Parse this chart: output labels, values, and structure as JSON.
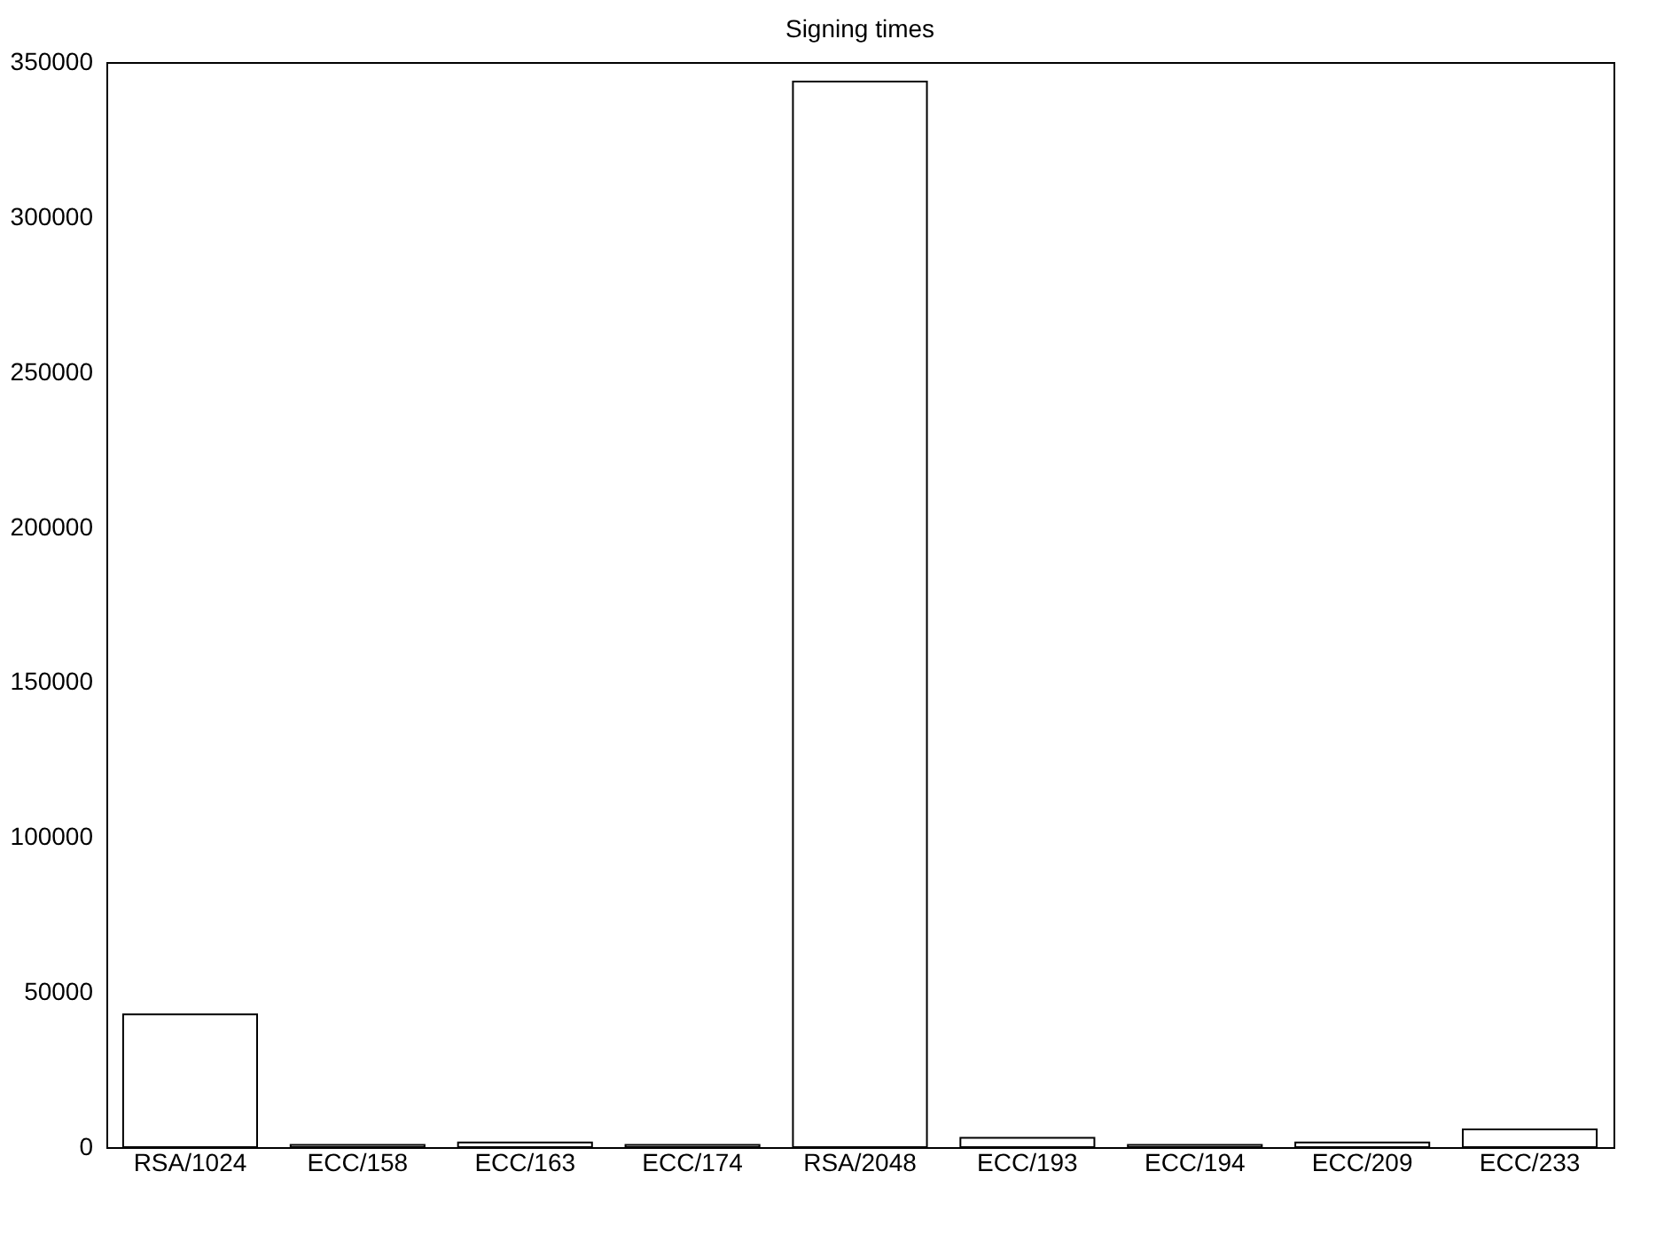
{
  "chart_data": {
    "type": "bar",
    "title": "Signing times",
    "categories": [
      "RSA/1024",
      "ECC/158",
      "ECC/163",
      "ECC/174",
      "RSA/2048",
      "ECC/193",
      "ECC/194",
      "ECC/209",
      "ECC/233"
    ],
    "values": [
      42800,
      700,
      1500,
      700,
      343700,
      3000,
      700,
      1500,
      5700
    ],
    "color": "#ffffff",
    "ylim": [
      0,
      350000
    ],
    "yticks": [
      0,
      50000,
      100000,
      150000,
      200000,
      250000,
      300000,
      350000
    ],
    "grid": false
  }
}
